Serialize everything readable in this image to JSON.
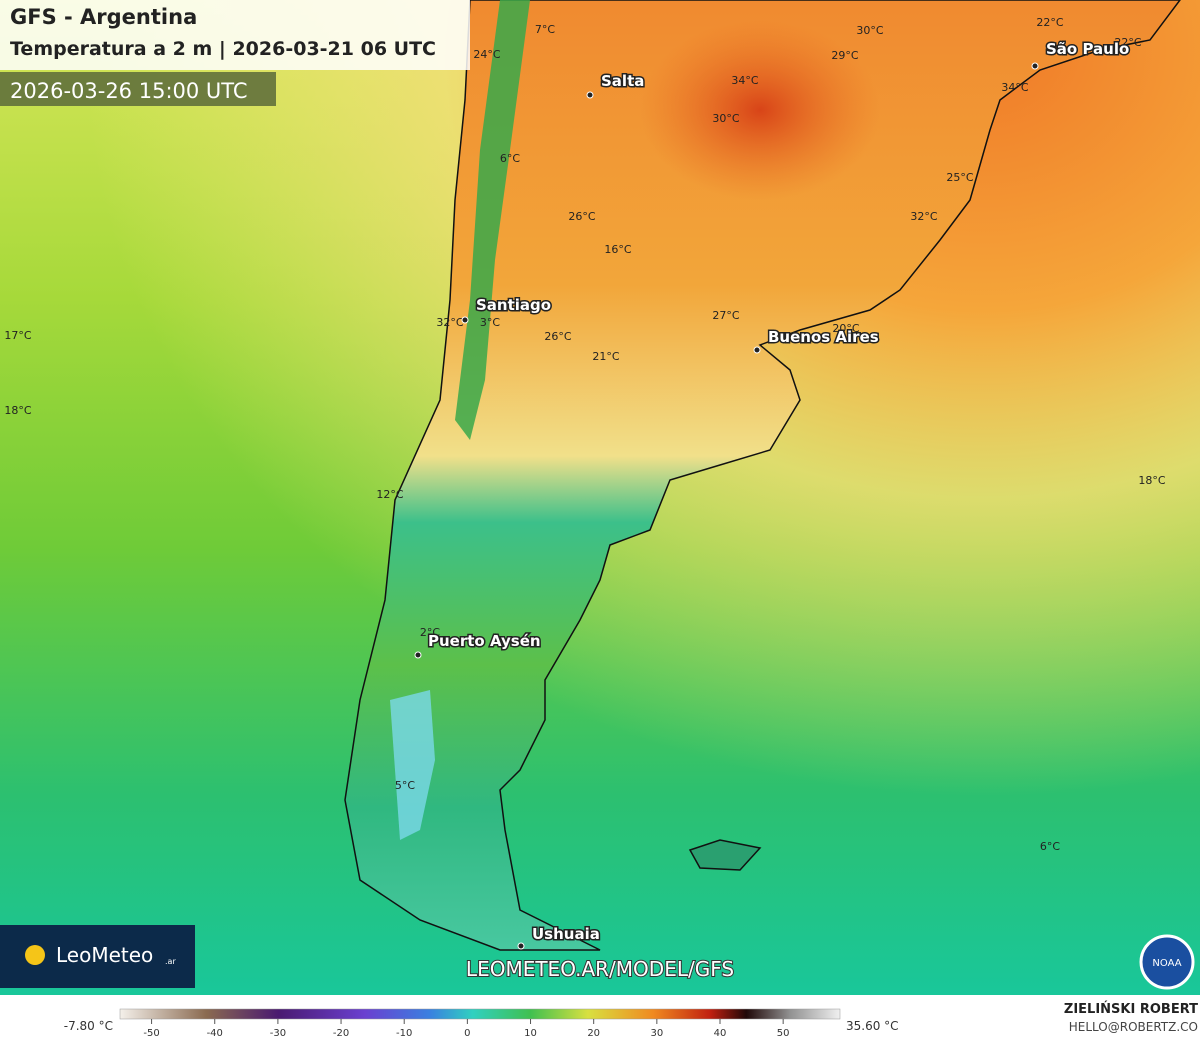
{
  "header": {
    "title": "GFS - Argentina",
    "subtitle": "Temperatura a 2 m | 2026-03-21 06 UTC",
    "valid_time": "2026-03-26 15:00 UTC"
  },
  "cities": [
    "Salta",
    "São Paulo",
    "Santiago",
    "Buenos Aires",
    "Puerto Aysén",
    "Ushuaia"
  ],
  "temperature_labels": [
    "7°C",
    "24°C",
    "34°C",
    "30°C",
    "30°C",
    "29°C",
    "22°C",
    "22°C",
    "34°C",
    "6°C",
    "25°C",
    "26°C",
    "32°C",
    "16°C",
    "32°C",
    "3°C",
    "26°C",
    "21°C",
    "27°C",
    "20°C",
    "17°C",
    "18°C",
    "12°C",
    "18°C",
    "6°C",
    "5°C",
    "2°C"
  ],
  "logo": {
    "name": "LeoMeteo",
    "suffix": ".ar"
  },
  "url": "LEOMETEO.AR/MODEL/GFS",
  "noaa": "NOAA",
  "colorbar": {
    "min_label": "-7.80 °C",
    "max_label": "35.60 °C",
    "range": [
      -55,
      59
    ],
    "ticks": [
      -50,
      -40,
      -30,
      -20,
      -10,
      0,
      10,
      20,
      30,
      40,
      50
    ]
  },
  "credit": {
    "author": "ZIELIŃSKI ROBERT",
    "email": "HELLO@ROBERTZ.CO"
  }
}
